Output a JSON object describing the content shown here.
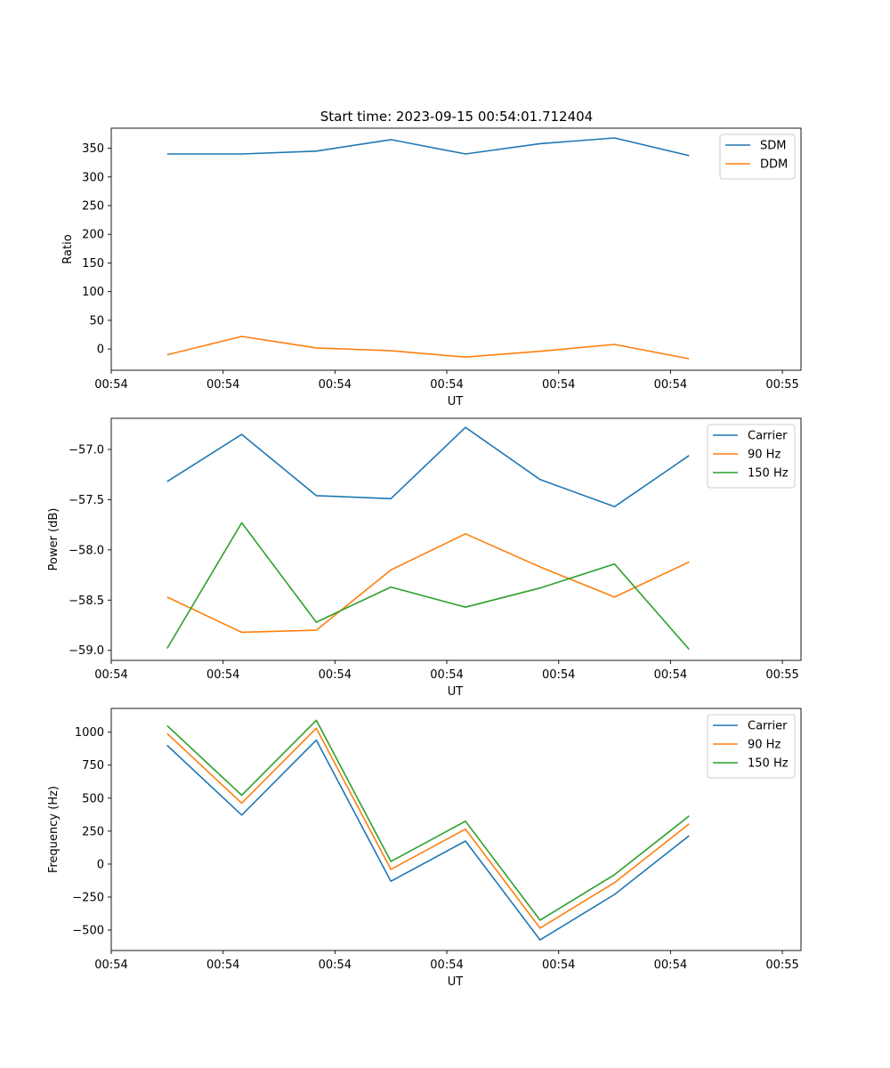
{
  "title": "Start time: 2023-09-15 00:54:01.712404",
  "chart_data": [
    {
      "type": "line",
      "ylabel": "Ratio",
      "xlabel": "UT",
      "x": [
        0,
        1,
        2,
        3,
        4,
        5,
        6,
        7
      ],
      "xlim": [
        -0.75,
        8.5
      ],
      "xtick_positions": [
        -0.75,
        0.75,
        2.25,
        3.75,
        5.25,
        6.75,
        8.25
      ],
      "xtick_labels": [
        "00:54",
        "00:54",
        "00:54",
        "00:54",
        "00:54",
        "00:54",
        "00:55"
      ],
      "ylim": [
        -37,
        385
      ],
      "yticks": [
        0,
        50,
        100,
        150,
        200,
        250,
        300,
        350
      ],
      "ytick_labels": [
        "0",
        "50",
        "100",
        "150",
        "200",
        "250",
        "300",
        "350"
      ],
      "legend_position": "top-right",
      "series": [
        {
          "name": "SDM",
          "color": "#1f77b4",
          "values": [
            340,
            340,
            345,
            365,
            340,
            358,
            368,
            337
          ]
        },
        {
          "name": "DDM",
          "color": "#ff7f0e",
          "values": [
            -10,
            22,
            2,
            -3,
            -14,
            -4,
            8,
            -17
          ]
        }
      ]
    },
    {
      "type": "line",
      "ylabel": "Power (dB)",
      "xlabel": "UT",
      "x": [
        0,
        1,
        2,
        3,
        4,
        5,
        6,
        7
      ],
      "xlim": [
        -0.75,
        8.5
      ],
      "xtick_positions": [
        -0.75,
        0.75,
        2.25,
        3.75,
        5.25,
        6.75,
        8.25
      ],
      "xtick_labels": [
        "00:54",
        "00:54",
        "00:54",
        "00:54",
        "00:54",
        "00:54",
        "00:55"
      ],
      "ylim": [
        -59.1,
        -56.69
      ],
      "yticks": [
        -59.0,
        -58.5,
        -58.0,
        -57.5,
        -57.0
      ],
      "ytick_labels": [
        "−59.0",
        "−58.5",
        "−58.0",
        "−57.5",
        "−57.0"
      ],
      "legend_position": "top-right",
      "series": [
        {
          "name": "Carrier",
          "color": "#1f77b4",
          "values": [
            -57.32,
            -56.85,
            -57.46,
            -57.49,
            -56.78,
            -57.3,
            -57.57,
            -57.06
          ]
        },
        {
          "name": "90 Hz",
          "color": "#ff7f0e",
          "values": [
            -58.47,
            -58.82,
            -58.8,
            -58.2,
            -57.84,
            -58.17,
            -58.47,
            -58.12
          ]
        },
        {
          "name": "150 Hz",
          "color": "#2ca02c",
          "values": [
            -58.98,
            -57.73,
            -58.72,
            -58.37,
            -58.57,
            -58.38,
            -58.14,
            -58.99
          ]
        }
      ]
    },
    {
      "type": "line",
      "ylabel": "Frequency (Hz)",
      "xlabel": "UT",
      "x": [
        0,
        1,
        2,
        3,
        4,
        5,
        6,
        7
      ],
      "xlim": [
        -0.75,
        8.5
      ],
      "xtick_positions": [
        -0.75,
        0.75,
        2.25,
        3.75,
        5.25,
        6.75,
        8.25
      ],
      "xtick_labels": [
        "00:54",
        "00:54",
        "00:54",
        "00:54",
        "00:54",
        "00:54",
        "00:55"
      ],
      "ylim": [
        -655,
        1180
      ],
      "yticks": [
        -500,
        -250,
        0,
        250,
        500,
        750,
        1000
      ],
      "ytick_labels": [
        "−500",
        "−250",
        "0",
        "250",
        "500",
        "750",
        "1000"
      ],
      "legend_position": "top-right",
      "series": [
        {
          "name": "Carrier",
          "color": "#1f77b4",
          "values": [
            900,
            372,
            940,
            -130,
            175,
            -575,
            -230,
            215
          ]
        },
        {
          "name": "90 Hz",
          "color": "#ff7f0e",
          "values": [
            990,
            462,
            1030,
            -40,
            265,
            -485,
            -140,
            305
          ]
        },
        {
          "name": "150 Hz",
          "color": "#2ca02c",
          "values": [
            1050,
            522,
            1090,
            20,
            325,
            -425,
            -80,
            365
          ]
        }
      ]
    }
  ]
}
